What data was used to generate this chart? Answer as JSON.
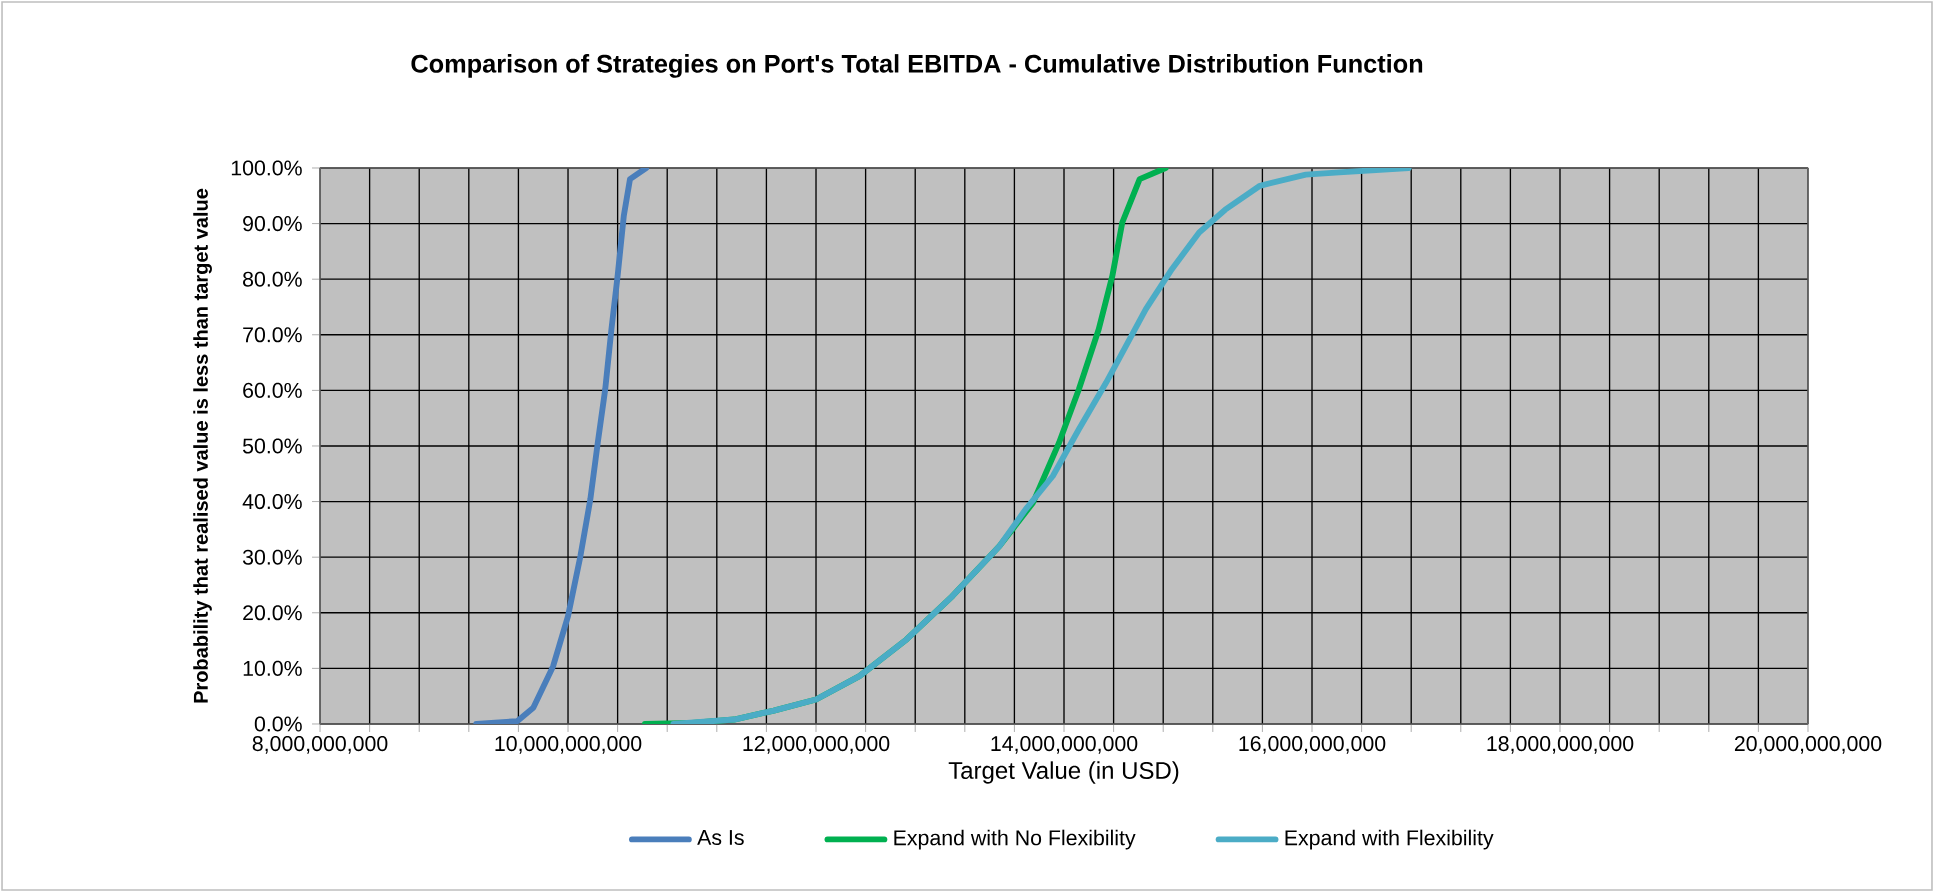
{
  "chart_data": {
    "type": "line",
    "title": "Comparison of Strategies on Port's Total EBITDA - Cumulative Distribution Function",
    "xlabel": "Target Value (in USD)",
    "ylabel": "Probability that realised value is less than target value",
    "series": [
      {
        "name": "As Is",
        "color": "#4a7ebb",
        "x": [
          9260000000,
          9590000000,
          9720000000,
          9880000000,
          10000000000,
          10100000000,
          10180000000,
          10240000000,
          10300000000,
          10350000000,
          10400000000,
          10450000000,
          10500000000,
          10630000000
        ],
        "values": [
          0,
          0.005,
          0.029,
          0.104,
          0.194,
          0.302,
          0.404,
          0.506,
          0.602,
          0.71,
          0.806,
          0.914,
          0.98,
          1.0
        ]
      },
      {
        "name": "Expand with No Flexibility",
        "color": "#00b050",
        "x": [
          10620000000,
          11000000000,
          11340000000,
          11660000000,
          12000000000,
          12350000000,
          12730000000,
          13100000000,
          13480000000,
          13750000000,
          13960000000,
          14120000000,
          14280000000,
          14390000000,
          14470000000,
          14610000000,
          14820000000
        ],
        "values": [
          0,
          0.002,
          0.008,
          0.024,
          0.044,
          0.086,
          0.152,
          0.23,
          0.32,
          0.398,
          0.506,
          0.602,
          0.71,
          0.806,
          0.902,
          0.98,
          1.0
        ]
      },
      {
        "name": "Expand with Flexibility",
        "color": "#4bacc6",
        "x": [
          10850000000,
          11340000000,
          11660000000,
          12000000000,
          12350000000,
          12730000000,
          13100000000,
          13480000000,
          13690000000,
          13910000000,
          14120000000,
          14340000000,
          14660000000,
          14870000000,
          15090000000,
          15300000000,
          15580000000,
          15950000000,
          16220000000,
          16780000000
        ],
        "values": [
          0,
          0.008,
          0.024,
          0.044,
          0.086,
          0.152,
          0.23,
          0.32,
          0.386,
          0.446,
          0.53,
          0.614,
          0.746,
          0.818,
          0.884,
          0.925,
          0.968,
          0.988,
          0.992,
          1.0
        ]
      }
    ],
    "xlim": [
      8000000000,
      20000000000
    ],
    "xticks": [
      {
        "value": 8000000000,
        "label": "8,000,000,000"
      },
      {
        "value": 8400000000,
        "label": null
      },
      {
        "value": 8800000000,
        "label": null
      },
      {
        "value": 9200000000,
        "label": null
      },
      {
        "value": 9600000000,
        "label": null
      },
      {
        "value": 10000000000,
        "label": "10,000,000,000"
      },
      {
        "value": 10400000000,
        "label": null
      },
      {
        "value": 10800000000,
        "label": null
      },
      {
        "value": 11200000000,
        "label": null
      },
      {
        "value": 11600000000,
        "label": null
      },
      {
        "value": 12000000000,
        "label": "12,000,000,000"
      },
      {
        "value": 12400000000,
        "label": null
      },
      {
        "value": 12800000000,
        "label": null
      },
      {
        "value": 13200000000,
        "label": null
      },
      {
        "value": 13600000000,
        "label": null
      },
      {
        "value": 14000000000,
        "label": "14,000,000,000"
      },
      {
        "value": 14400000000,
        "label": null
      },
      {
        "value": 14800000000,
        "label": null
      },
      {
        "value": 15200000000,
        "label": null
      },
      {
        "value": 15600000000,
        "label": null
      },
      {
        "value": 16000000000,
        "label": "16,000,000,000"
      },
      {
        "value": 16400000000,
        "label": null
      },
      {
        "value": 16800000000,
        "label": null
      },
      {
        "value": 17200000000,
        "label": null
      },
      {
        "value": 17600000000,
        "label": null
      },
      {
        "value": 18000000000,
        "label": "18,000,000,000"
      },
      {
        "value": 18400000000,
        "label": null
      },
      {
        "value": 18800000000,
        "label": null
      },
      {
        "value": 19200000000,
        "label": null
      },
      {
        "value": 19600000000,
        "label": null
      },
      {
        "value": 20000000000,
        "label": "20,000,000,000"
      }
    ],
    "ylim": [
      0,
      1
    ],
    "yticks": [
      {
        "value": 0,
        "label": "0.0%"
      },
      {
        "value": 0.1,
        "label": "10.0%"
      },
      {
        "value": 0.2,
        "label": "20.0%"
      },
      {
        "value": 0.3,
        "label": "30.0%"
      },
      {
        "value": 0.4,
        "label": "40.0%"
      },
      {
        "value": 0.5,
        "label": "50.0%"
      },
      {
        "value": 0.6,
        "label": "60.0%"
      },
      {
        "value": 0.7,
        "label": "70.0%"
      },
      {
        "value": 0.8,
        "label": "80.0%"
      },
      {
        "value": 0.9,
        "label": "90.0%"
      },
      {
        "value": 1,
        "label": "100.0%"
      }
    ],
    "grid": true,
    "legend": "bottom",
    "marker": "none",
    "line_style": "solid"
  }
}
